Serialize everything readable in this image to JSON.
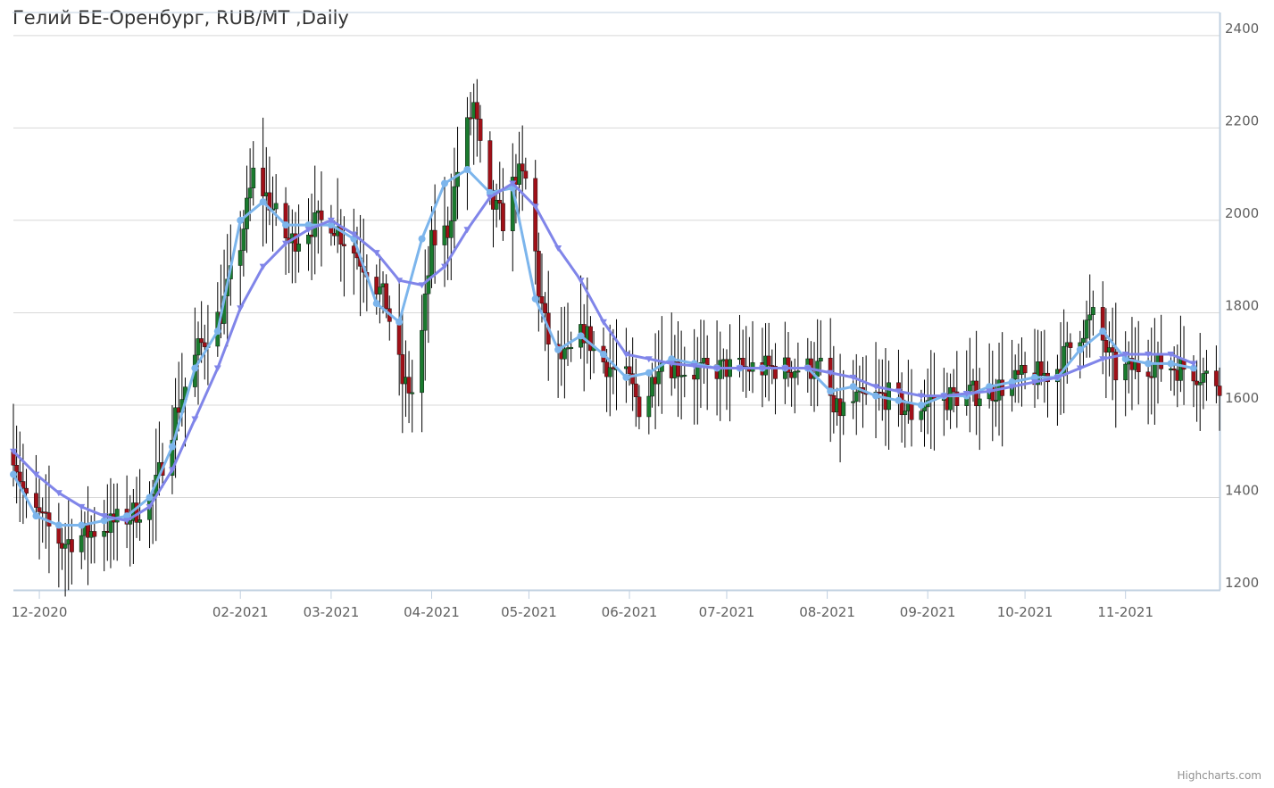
{
  "chart_data": {
    "type": "candlestick",
    "title": "Гелий БЕ-Оренбург, RUB/MT ,Daily",
    "credits": "Highcharts.com",
    "x_range": [
      "2020-11-23",
      "2021-11-30"
    ],
    "ylim": [
      1200,
      2450
    ],
    "y_ticks": [
      1200,
      1400,
      1600,
      1800,
      2000,
      2200,
      2400
    ],
    "x_ticks": [
      {
        "date": "2020-12-01",
        "label": "12-2020"
      },
      {
        "date": "2021-02-01",
        "label": "02-2021"
      },
      {
        "date": "2021-03-01",
        "label": "03-2021"
      },
      {
        "date": "2021-04-01",
        "label": "04-2021"
      },
      {
        "date": "2021-05-01",
        "label": "05-2021"
      },
      {
        "date": "2021-06-01",
        "label": "06-2021"
      },
      {
        "date": "2021-07-01",
        "label": "07-2021"
      },
      {
        "date": "2021-08-01",
        "label": "08-2021"
      },
      {
        "date": "2021-09-01",
        "label": "09-2021"
      },
      {
        "date": "2021-10-01",
        "label": "10-2021"
      },
      {
        "date": "2021-11-01",
        "label": "11-2021"
      }
    ],
    "grid": true,
    "y_axis_side": "right",
    "colors": {
      "up": "#1a7a2e",
      "down": "#a01018",
      "wick": "#000000",
      "ma_fast": "#7cb5ec",
      "ma_slow": "#8085e9",
      "grid": "#d8d8d8",
      "axis": "#c0d0e0"
    },
    "price_anchors": [
      [
        "2020-11-23",
        1500
      ],
      [
        "2020-11-27",
        1390
      ],
      [
        "2020-12-02",
        1350
      ],
      [
        "2020-12-08",
        1300
      ],
      [
        "2020-12-15",
        1320
      ],
      [
        "2020-12-22",
        1340
      ],
      [
        "2020-12-29",
        1360
      ],
      [
        "2021-01-05",
        1400
      ],
      [
        "2021-01-12",
        1580
      ],
      [
        "2021-01-19",
        1720
      ],
      [
        "2021-01-26",
        1800
      ],
      [
        "2021-02-01",
        1950
      ],
      [
        "2021-02-05",
        2100
      ],
      [
        "2021-02-10",
        2040
      ],
      [
        "2021-02-16",
        1950
      ],
      [
        "2021-02-23",
        1990
      ],
      [
        "2021-03-01",
        2000
      ],
      [
        "2021-03-06",
        1950
      ],
      [
        "2021-03-12",
        1900
      ],
      [
        "2021-03-18",
        1820
      ],
      [
        "2021-03-23",
        1650
      ],
      [
        "2021-03-27",
        1620
      ],
      [
        "2021-04-01",
        1950
      ],
      [
        "2021-04-06",
        1980
      ],
      [
        "2021-04-10",
        2150
      ],
      [
        "2021-04-14",
        2250
      ],
      [
        "2021-04-18",
        2050
      ],
      [
        "2021-04-23",
        2000
      ],
      [
        "2021-04-27",
        2100
      ],
      [
        "2021-05-01",
        2080
      ],
      [
        "2021-05-04",
        1850
      ],
      [
        "2021-05-08",
        1700
      ],
      [
        "2021-05-13",
        1700
      ],
      [
        "2021-05-18",
        1760
      ],
      [
        "2021-05-23",
        1700
      ],
      [
        "2021-06-01",
        1650
      ],
      [
        "2021-06-05",
        1580
      ],
      [
        "2021-06-10",
        1700
      ],
      [
        "2021-06-20",
        1670
      ],
      [
        "2021-07-01",
        1680
      ],
      [
        "2021-07-15",
        1680
      ],
      [
        "2021-07-31",
        1680
      ],
      [
        "2021-08-03",
        1580
      ],
      [
        "2021-08-10",
        1610
      ],
      [
        "2021-08-20",
        1620
      ],
      [
        "2021-08-27",
        1580
      ],
      [
        "2021-09-01",
        1610
      ],
      [
        "2021-09-10",
        1620
      ],
      [
        "2021-09-20",
        1630
      ],
      [
        "2021-10-01",
        1660
      ],
      [
        "2021-10-10",
        1670
      ],
      [
        "2021-10-18",
        1760
      ],
      [
        "2021-10-22",
        1790
      ],
      [
        "2021-10-26",
        1720
      ],
      [
        "2021-10-29",
        1670
      ],
      [
        "2021-11-08",
        1690
      ],
      [
        "2021-11-20",
        1680
      ],
      [
        "2021-11-30",
        1650
      ]
    ],
    "series": [
      {
        "type": "line",
        "marker": "circle",
        "color": "#7cb5ec",
        "points": [
          [
            "2020-11-23",
            1450
          ],
          [
            "2020-11-30",
            1360
          ],
          [
            "2020-12-07",
            1340
          ],
          [
            "2020-12-14",
            1340
          ],
          [
            "2020-12-21",
            1350
          ],
          [
            "2020-12-28",
            1360
          ],
          [
            "2021-01-04",
            1400
          ],
          [
            "2021-01-11",
            1510
          ],
          [
            "2021-01-18",
            1680
          ],
          [
            "2021-01-25",
            1760
          ],
          [
            "2021-02-01",
            2000
          ],
          [
            "2021-02-08",
            2040
          ],
          [
            "2021-02-15",
            1990
          ],
          [
            "2021-02-22",
            1990
          ],
          [
            "2021-03-01",
            1990
          ],
          [
            "2021-03-08",
            1960
          ],
          [
            "2021-03-15",
            1820
          ],
          [
            "2021-03-22",
            1780
          ],
          [
            "2021-03-29",
            1960
          ],
          [
            "2021-04-05",
            2080
          ],
          [
            "2021-04-12",
            2110
          ],
          [
            "2021-04-19",
            2060
          ],
          [
            "2021-04-26",
            2070
          ],
          [
            "2021-05-03",
            1830
          ],
          [
            "2021-05-10",
            1720
          ],
          [
            "2021-05-17",
            1750
          ],
          [
            "2021-05-24",
            1710
          ],
          [
            "2021-05-31",
            1660
          ],
          [
            "2021-06-07",
            1670
          ],
          [
            "2021-06-14",
            1700
          ],
          [
            "2021-06-21",
            1690
          ],
          [
            "2021-06-28",
            1680
          ],
          [
            "2021-07-05",
            1680
          ],
          [
            "2021-07-12",
            1680
          ],
          [
            "2021-07-19",
            1680
          ],
          [
            "2021-07-26",
            1680
          ],
          [
            "2021-08-02",
            1630
          ],
          [
            "2021-08-09",
            1640
          ],
          [
            "2021-08-16",
            1620
          ],
          [
            "2021-08-23",
            1610
          ],
          [
            "2021-08-30",
            1600
          ],
          [
            "2021-09-06",
            1620
          ],
          [
            "2021-09-13",
            1620
          ],
          [
            "2021-09-20",
            1640
          ],
          [
            "2021-09-27",
            1650
          ],
          [
            "2021-10-04",
            1660
          ],
          [
            "2021-10-11",
            1660
          ],
          [
            "2021-10-18",
            1720
          ],
          [
            "2021-10-25",
            1760
          ],
          [
            "2021-11-01",
            1700
          ],
          [
            "2021-11-08",
            1690
          ],
          [
            "2021-11-15",
            1690
          ],
          [
            "2021-11-22",
            1680
          ]
        ]
      },
      {
        "type": "line",
        "marker": "triangle-down",
        "color": "#8085e9",
        "points": [
          [
            "2020-11-23",
            1500
          ],
          [
            "2020-11-30",
            1450
          ],
          [
            "2020-12-07",
            1410
          ],
          [
            "2020-12-14",
            1380
          ],
          [
            "2020-12-21",
            1360
          ],
          [
            "2020-12-28",
            1350
          ],
          [
            "2021-01-04",
            1380
          ],
          [
            "2021-01-11",
            1460
          ],
          [
            "2021-01-18",
            1570
          ],
          [
            "2021-01-25",
            1680
          ],
          [
            "2021-02-01",
            1810
          ],
          [
            "2021-02-08",
            1900
          ],
          [
            "2021-02-15",
            1950
          ],
          [
            "2021-02-22",
            1980
          ],
          [
            "2021-03-01",
            2000
          ],
          [
            "2021-03-08",
            1970
          ],
          [
            "2021-03-15",
            1930
          ],
          [
            "2021-03-22",
            1870
          ],
          [
            "2021-03-29",
            1860
          ],
          [
            "2021-04-05",
            1900
          ],
          [
            "2021-04-12",
            1980
          ],
          [
            "2021-04-19",
            2050
          ],
          [
            "2021-04-26",
            2080
          ],
          [
            "2021-05-03",
            2030
          ],
          [
            "2021-05-10",
            1940
          ],
          [
            "2021-05-17",
            1870
          ],
          [
            "2021-05-24",
            1780
          ],
          [
            "2021-05-31",
            1710
          ],
          [
            "2021-06-07",
            1700
          ],
          [
            "2021-06-14",
            1690
          ],
          [
            "2021-06-21",
            1685
          ],
          [
            "2021-06-28",
            1680
          ],
          [
            "2021-07-05",
            1680
          ],
          [
            "2021-07-12",
            1680
          ],
          [
            "2021-07-19",
            1680
          ],
          [
            "2021-07-26",
            1680
          ],
          [
            "2021-08-02",
            1670
          ],
          [
            "2021-08-09",
            1660
          ],
          [
            "2021-08-16",
            1640
          ],
          [
            "2021-08-23",
            1630
          ],
          [
            "2021-08-30",
            1620
          ],
          [
            "2021-09-06",
            1620
          ],
          [
            "2021-09-13",
            1625
          ],
          [
            "2021-09-20",
            1630
          ],
          [
            "2021-09-27",
            1640
          ],
          [
            "2021-10-04",
            1650
          ],
          [
            "2021-10-11",
            1660
          ],
          [
            "2021-10-18",
            1680
          ],
          [
            "2021-10-25",
            1700
          ],
          [
            "2021-11-01",
            1710
          ],
          [
            "2021-11-08",
            1710
          ],
          [
            "2021-11-15",
            1710
          ],
          [
            "2021-11-22",
            1690
          ]
        ]
      }
    ]
  }
}
